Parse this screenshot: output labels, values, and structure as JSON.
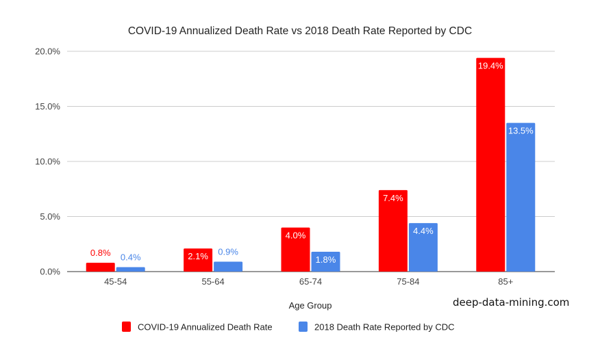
{
  "chart_data": {
    "type": "bar",
    "title": "COVID-19 Annualized Death Rate vs 2018 Death Rate Reported by CDC",
    "xlabel": "Age Group",
    "ylabel": "",
    "categories": [
      "45-54",
      "55-64",
      "65-74",
      "75-84",
      "85+"
    ],
    "series": [
      {
        "name": "COVID-19 Annualized Death Rate",
        "color": "#ff0000",
        "values": [
          0.8,
          2.1,
          4.0,
          7.4,
          19.4
        ],
        "labels": [
          "0.8%",
          "2.1%",
          "4.0%",
          "7.4%",
          "19.4%"
        ]
      },
      {
        "name": "2018 Death Rate Reported by CDC",
        "color": "#4a86e8",
        "values": [
          0.4,
          0.9,
          1.8,
          4.4,
          13.5
        ],
        "labels": [
          "0.4%",
          "0.9%",
          "1.8%",
          "4.4%",
          "13.5%"
        ]
      }
    ],
    "ylim": [
      0,
      20
    ],
    "yticks": [
      0,
      5,
      10,
      15,
      20
    ],
    "ytick_labels": [
      "0.0%",
      "5.0%",
      "10.0%",
      "15.0%",
      "20.0%"
    ],
    "grid": true,
    "legend_position": "bottom"
  },
  "watermark": "deep-data-mining.com"
}
